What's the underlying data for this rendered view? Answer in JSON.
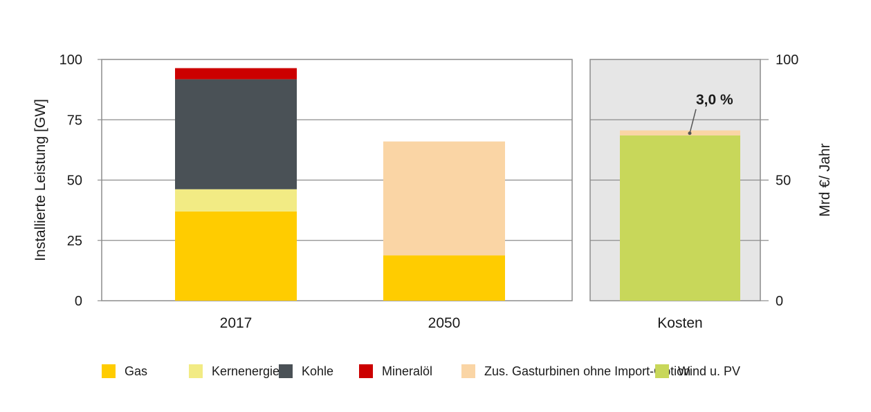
{
  "chart_data": [
    {
      "type": "bar",
      "stacked": true,
      "categories": [
        "2017",
        "2050"
      ],
      "ylabel": "Installierte Leistung [GW]",
      "ylim": [
        0,
        100
      ],
      "yticks": [
        0,
        25,
        50,
        75,
        100
      ],
      "grid": true,
      "series": [
        {
          "name": "Gas",
          "color": "#FFCC00",
          "values": [
            37,
            18.8
          ]
        },
        {
          "name": "Kernenergie",
          "color": "#F2EB84",
          "values": [
            9.2,
            0
          ]
        },
        {
          "name": "Kohle",
          "color": "#4A5156",
          "values": [
            45.6,
            0
          ]
        },
        {
          "name": "Mineralöl",
          "color": "#CC0000",
          "values": [
            4.6,
            0
          ]
        },
        {
          "name": "Zus. Gasturbinen ohne Import-Option",
          "color": "#FAD5A5",
          "values": [
            0,
            47.2
          ]
        }
      ]
    },
    {
      "type": "bar",
      "stacked": true,
      "categories": [
        "Kosten"
      ],
      "ylabel": "Mrd €/ Jahr",
      "ylim": [
        0,
        100
      ],
      "yticks": [
        0,
        50,
        100
      ],
      "grid": true,
      "background": "#E6E6E6",
      "series": [
        {
          "name": "Wind u. PV",
          "color": "#C8D75A",
          "values": [
            68.5
          ]
        },
        {
          "name": "Zus. Gasturbinen ohne Import-Option",
          "color": "#FAD5A5",
          "values": [
            2.1
          ]
        }
      ],
      "annotations": [
        {
          "text": "3,0 %"
        }
      ]
    }
  ],
  "legend": [
    {
      "label": "Gas",
      "color": "#FFCC00"
    },
    {
      "label": "Kernenergie",
      "color": "#F2EB84"
    },
    {
      "label": "Kohle",
      "color": "#4A5156"
    },
    {
      "label": "Mineralöl",
      "color": "#CC0000"
    },
    {
      "label": "Zus. Gasturbinen ohne Import-Option",
      "color": "#FAD5A5"
    },
    {
      "label": "Wind u. PV",
      "color": "#C8D75A"
    }
  ]
}
